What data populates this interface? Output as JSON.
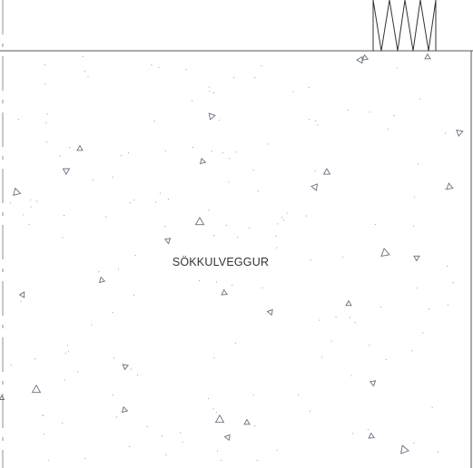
{
  "drawing": {
    "wall_label": "SÖKKULVEGGUR",
    "hatch_pattern": "concrete-triangle-hatch",
    "colors": {
      "background": "#ffffff",
      "outline": "#555555",
      "hatch": "#6a6f7a",
      "label": "#333333"
    }
  }
}
